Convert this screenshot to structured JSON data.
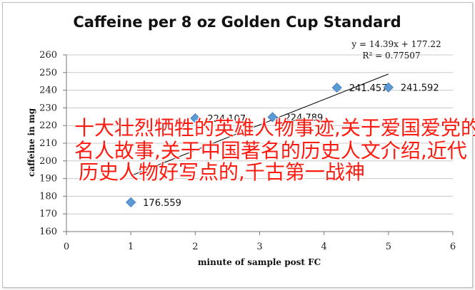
{
  "chart_data": {
    "type": "scatter",
    "title": "Caffeine per 8 oz Golden Cup Standard",
    "xlabel": "minute of sample post FC",
    "ylabel": "caffeine in mg",
    "xlim": [
      0,
      6
    ],
    "ylim": [
      160,
      260
    ],
    "xticks": [
      "0",
      "1",
      "2",
      "3",
      "4",
      "5",
      "6"
    ],
    "yticks": [
      "160",
      "170",
      "180",
      "190",
      "200",
      "210",
      "220",
      "230",
      "240",
      "250",
      "260"
    ],
    "grid": "horizontal",
    "marker_color": "#5b9bd5",
    "points": [
      {
        "x": 1,
        "y": 176.559,
        "label": "176.559"
      },
      {
        "x": 2,
        "y": 224.107,
        "label": "224.107"
      },
      {
        "x": 3.2,
        "y": 224.789,
        "label": "224.789"
      },
      {
        "x": 4.2,
        "y": 241.457,
        "label": "241.457"
      },
      {
        "x": 5,
        "y": 241.592,
        "label": "241.592"
      }
    ],
    "trendline": {
      "type": "linear",
      "slope": 14.39,
      "intercept": 177.22,
      "x_range": [
        1,
        5
      ],
      "equation": "y = 14.39x + 177.22",
      "r2_text": "R² = 0.77507"
    }
  },
  "overlay": {
    "color": "#ff1a10",
    "lines": [
      "十大壮烈牺牲的英雄人物事迹,关于爱国爱党的",
      "名人故事,关于中国著名的历史人文介绍,近代",
      "历史人物好写点的,千古第一战神"
    ]
  }
}
